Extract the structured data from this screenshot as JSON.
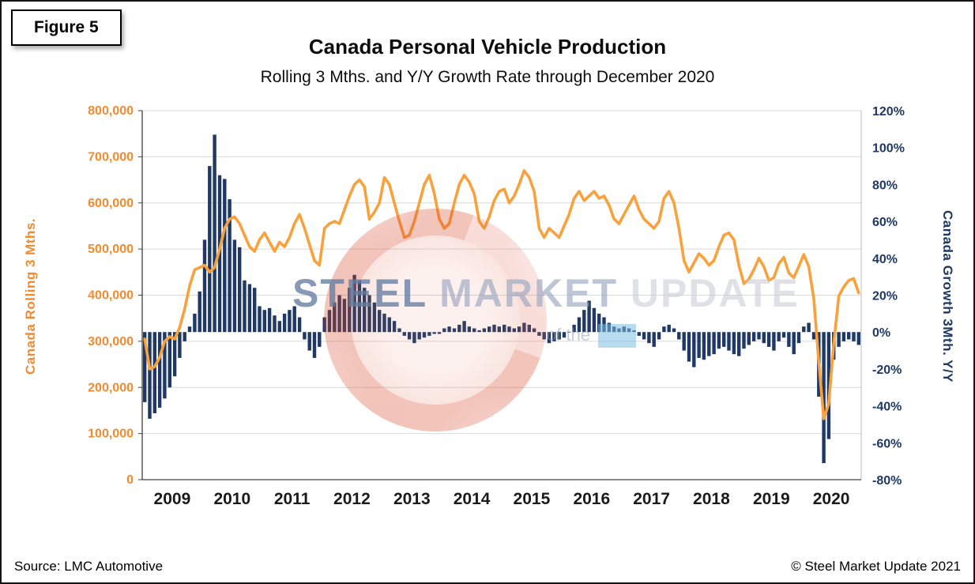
{
  "figure": {
    "label": "Figure 5"
  },
  "footer": {
    "source": "Source: LMC Automotive",
    "copyright": "© Steel Market Update 2021"
  },
  "watermark": {
    "word1": "STEEL",
    "word2": "MARKET",
    "word3": "UPDATE",
    "sub": "of the"
  },
  "chart_data": {
    "type": "bar",
    "subtype": "combo-bar-line",
    "title": "Canada Personal Vehicle Production",
    "subtitle": "Rolling 3 Mths. and Y/Y Growth Rate through December 2020",
    "x_years": [
      "2009",
      "2010",
      "2011",
      "2012",
      "2013",
      "2014",
      "2015",
      "2016",
      "2017",
      "2018",
      "2019",
      "2020"
    ],
    "months_per_year": 12,
    "grid": "horizontal",
    "axis_left": {
      "label": "Canada Rolling 3 Mths.",
      "min": 0,
      "max": 800000,
      "ticks": [
        "800,000",
        "700,000",
        "600,000",
        "500,000",
        "400,000",
        "300,000",
        "200,000",
        "100,000",
        "0"
      ],
      "color": "#F28B30"
    },
    "axis_right": {
      "label": "Canada Growth 3Mth. Y/Y",
      "min": -80,
      "max": 120,
      "ticks": [
        "120%",
        "100%",
        "80%",
        "60%",
        "40%",
        "20%",
        "0%",
        "-20%",
        "-40%",
        "-60%",
        "-80%"
      ],
      "color": "#1F3864"
    },
    "series": [
      {
        "name": "Canada Rolling 3 Mths.",
        "type": "line",
        "axis": "left",
        "color": "#F9A13C",
        "values": [
          305000,
          240000,
          245000,
          265000,
          300000,
          310000,
          305000,
          330000,
          370000,
          420000,
          455000,
          460000,
          465000,
          450000,
          460000,
          500000,
          545000,
          565000,
          570000,
          555000,
          530000,
          505000,
          495000,
          520000,
          535000,
          515000,
          495000,
          515000,
          505000,
          525000,
          555000,
          575000,
          545000,
          510000,
          475000,
          465000,
          545000,
          555000,
          560000,
          555000,
          585000,
          615000,
          640000,
          650000,
          635000,
          565000,
          580000,
          600000,
          655000,
          640000,
          600000,
          560000,
          525000,
          530000,
          560000,
          600000,
          640000,
          660000,
          620000,
          565000,
          545000,
          555000,
          600000,
          640000,
          660000,
          645000,
          620000,
          560000,
          545000,
          570000,
          605000,
          625000,
          630000,
          600000,
          615000,
          640000,
          670000,
          655000,
          625000,
          545000,
          525000,
          545000,
          535000,
          525000,
          550000,
          575000,
          610000,
          625000,
          605000,
          615000,
          625000,
          610000,
          615000,
          595000,
          565000,
          555000,
          575000,
          595000,
          615000,
          585000,
          565000,
          555000,
          545000,
          560000,
          610000,
          625000,
          600000,
          545000,
          475000,
          450000,
          470000,
          490000,
          480000,
          465000,
          475000,
          505000,
          530000,
          535000,
          520000,
          465000,
          425000,
          435000,
          455000,
          480000,
          462000,
          432000,
          438000,
          468000,
          482000,
          448000,
          438000,
          462000,
          488000,
          462000,
          392000,
          255000,
          132000,
          165000,
          295000,
          398000,
          418000,
          432000,
          436000,
          405000
        ]
      },
      {
        "name": "Canada Growth 3Mth. Y/Y",
        "type": "bar",
        "axis": "right",
        "color": "#1F3864",
        "values": [
          -38,
          -47,
          -44,
          -41,
          -36,
          -30,
          -24,
          -14,
          -5,
          3,
          10,
          22,
          50,
          90,
          107,
          85,
          83,
          72,
          50,
          46,
          28,
          26,
          24,
          14,
          12,
          13,
          9,
          6,
          10,
          12,
          14,
          8,
          -4,
          -10,
          -14,
          -8,
          8,
          12,
          16,
          20,
          18,
          24,
          31,
          28,
          24,
          20,
          16,
          12,
          10,
          8,
          6,
          2,
          -2,
          -4,
          -6,
          -4,
          -3,
          -2,
          -1,
          -1,
          2,
          3,
          2,
          4,
          6,
          3,
          2,
          1,
          2,
          3,
          4,
          3,
          4,
          3,
          2,
          3,
          5,
          4,
          2,
          -2,
          -4,
          -6,
          -5,
          -4,
          -3,
          0,
          4,
          8,
          12,
          17,
          13,
          10,
          8,
          5,
          3,
          2,
          3,
          2,
          1,
          -2,
          -4,
          -6,
          -8,
          -4,
          3,
          4,
          2,
          -4,
          -10,
          -16,
          -19,
          -14,
          -15,
          -13,
          -12,
          -9,
          -8,
          -10,
          -12,
          -13,
          -9,
          -7,
          -5,
          -4,
          -6,
          -8,
          -10,
          -5,
          -3,
          -8,
          -12,
          -6,
          3,
          5,
          -4,
          -35,
          -71,
          -58,
          -15,
          -8,
          -5,
          -4,
          -5,
          -7
        ]
      }
    ]
  }
}
